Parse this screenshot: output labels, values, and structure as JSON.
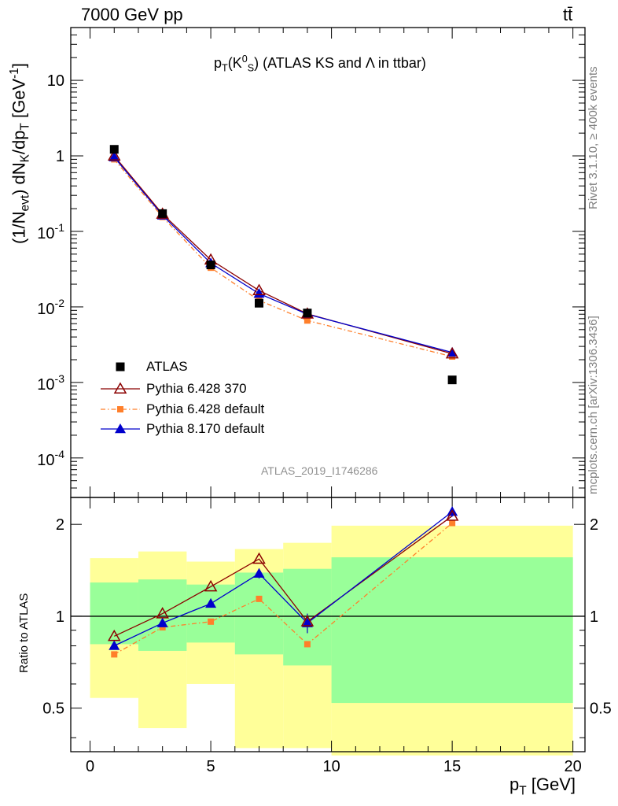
{
  "header": {
    "left": "7000 GeV pp",
    "right": "tt̄"
  },
  "side_labels": {
    "rivet": "Rivet 3.1.10, ≥ 400k events",
    "mcplots": "mcplots.cern.ch [arXiv:1306.3436]"
  },
  "main_panel": {
    "title": "p_T(K_S^0) (ATLAS KS and Λ in ttbar)",
    "ylabel": "(1/N_evt) dN_K/dp_T [GeV^-1]",
    "watermark": "ATLAS_2019_I1746286",
    "yticks": [
      "10",
      "1",
      "10^-1",
      "10^-2",
      "10^-3",
      "10^-4"
    ]
  },
  "ratio_panel": {
    "ylabel": "Ratio to ATLAS",
    "yticks": [
      "0.5",
      "1",
      "2"
    ]
  },
  "xaxis": {
    "label": "p_T [GeV]",
    "ticks": [
      "0",
      "5",
      "10",
      "15",
      "20"
    ]
  },
  "legend": [
    {
      "label": "ATLAS",
      "color": "#000000",
      "marker": "square"
    },
    {
      "label": "Pythia 6.428 370",
      "color": "#8b0000",
      "marker": "open-triangle"
    },
    {
      "label": "Pythia 6.428 default",
      "color": "#ff7f2a",
      "marker": "small-square"
    },
    {
      "label": "Pythia 8.170 default",
      "color": "#0000cc",
      "marker": "triangle"
    }
  ],
  "chart_data": [
    {
      "type": "line",
      "xlim": [
        -0.8,
        20.5
      ],
      "ylim": [
        3e-05,
        50
      ],
      "yscale": "log",
      "x": [
        1,
        3,
        5,
        7,
        9,
        15
      ],
      "series": [
        {
          "name": "ATLAS",
          "values": [
            1.22,
            0.172,
            0.036,
            0.0112,
            0.0083,
            0.00108
          ]
        },
        {
          "name": "Pythia 6.428 370",
          "values": [
            1.0,
            0.17,
            0.042,
            0.0165,
            0.0081,
            0.0024
          ]
        },
        {
          "name": "Pythia 6.428 default",
          "values": [
            0.9,
            0.155,
            0.033,
            0.0122,
            0.0066,
            0.0022
          ]
        },
        {
          "name": "Pythia 8.170 default",
          "values": [
            0.96,
            0.163,
            0.038,
            0.015,
            0.008,
            0.0025
          ]
        }
      ]
    },
    {
      "type": "area",
      "xlim": [
        -0.8,
        20.5
      ],
      "ylim": [
        0.36,
        2.45
      ],
      "yscale": "log",
      "bins": [
        [
          0,
          2
        ],
        [
          2,
          4
        ],
        [
          4,
          6
        ],
        [
          6,
          8
        ],
        [
          8,
          10
        ],
        [
          10,
          20
        ]
      ],
      "band_outer": [
        [
          0.54,
          1.55
        ],
        [
          0.43,
          1.63
        ],
        [
          0.6,
          1.51
        ],
        [
          0.37,
          1.66
        ],
        [
          0.37,
          1.74
        ],
        [
          0.35,
          1.98
        ]
      ],
      "band_inner": [
        [
          0.81,
          1.29
        ],
        [
          0.77,
          1.32
        ],
        [
          0.82,
          1.27
        ],
        [
          0.75,
          1.39
        ],
        [
          0.69,
          1.43
        ],
        [
          0.52,
          1.56
        ]
      ],
      "x": [
        1,
        3,
        5,
        7,
        9,
        15
      ],
      "series": [
        {
          "name": "Pythia 6.428 370",
          "values": [
            0.86,
            1.02,
            1.25,
            1.54,
            0.96,
            2.13
          ]
        },
        {
          "name": "Pythia 6.428 default",
          "values": [
            0.75,
            0.92,
            0.96,
            1.14,
            0.81,
            2.02
          ]
        },
        {
          "name": "Pythia 8.170 default",
          "values": [
            0.8,
            0.95,
            1.1,
            1.38,
            0.95,
            2.2
          ]
        }
      ],
      "reference_line": 1
    }
  ]
}
